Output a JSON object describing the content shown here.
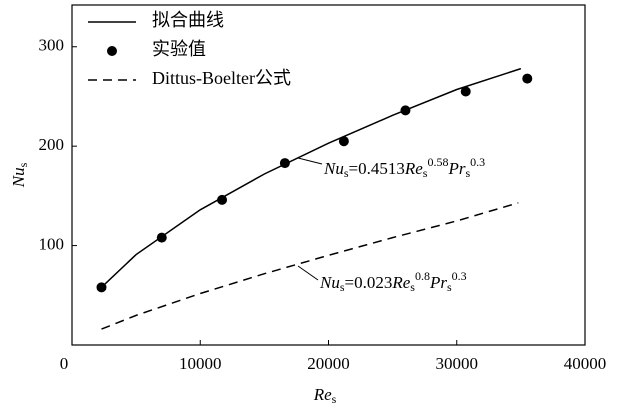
{
  "chart_data": {
    "type": "line",
    "xlabel": [
      {
        "text": "Re",
        "style": "italic"
      },
      {
        "text": "s",
        "style": "sub"
      }
    ],
    "ylabel": [
      {
        "text": "Nu",
        "style": "italic"
      },
      {
        "text": "s",
        "style": "sub"
      }
    ],
    "xlim": [
      0,
      40000
    ],
    "ylim": [
      0,
      342
    ],
    "xticks": [
      0,
      10000,
      20000,
      30000,
      40000
    ],
    "yticks": [
      100,
      200,
      300
    ],
    "series": [
      {
        "name": "拟合曲线",
        "color": "#000000",
        "kind": "line",
        "dash": false,
        "x": [
          2300,
          5000,
          10000,
          15000,
          20000,
          25000,
          30000,
          35000
        ],
        "values": [
          58,
          91,
          136,
          172,
          203,
          231,
          257,
          278
        ]
      },
      {
        "name": "实验值",
        "color": "#000000",
        "kind": "scatter",
        "x": [
          2300,
          7000,
          11700,
          16600,
          21200,
          26000,
          30700,
          35500
        ],
        "values": [
          58,
          108,
          146,
          183,
          205,
          236,
          255,
          268
        ]
      },
      {
        "name": "Dittus-Boelter公式",
        "color": "#000000",
        "kind": "line",
        "dash": true,
        "x": [
          2300,
          5000,
          10000,
          15000,
          20000,
          25000,
          30000,
          34800
        ],
        "values": [
          16,
          29.8,
          51.8,
          71.7,
          90.2,
          108,
          124.8,
          143
        ]
      }
    ],
    "annotations": [
      {
        "parts": [
          {
            "text": "Nu",
            "style": "italic"
          },
          {
            "text": "s",
            "style": "sub"
          },
          {
            "text": "=0.4513",
            "style": "normal"
          },
          {
            "text": "Re",
            "style": "italic"
          },
          {
            "text": "s",
            "style": "sub"
          },
          {
            "text": "0.58",
            "style": "sup"
          },
          {
            "text": "Pr",
            "style": "italic"
          },
          {
            "text": "s",
            "style": "sub"
          },
          {
            "text": "0.3",
            "style": "sup"
          }
        ]
      },
      {
        "parts": [
          {
            "text": "Nu",
            "style": "italic"
          },
          {
            "text": "s",
            "style": "sub"
          },
          {
            "text": "=0.023",
            "style": "normal"
          },
          {
            "text": "Re",
            "style": "italic"
          },
          {
            "text": "s",
            "style": "sub"
          },
          {
            "text": "0.8",
            "style": "sup"
          },
          {
            "text": "Pr",
            "style": "italic"
          },
          {
            "text": "s",
            "style": "sub"
          },
          {
            "text": "0.3",
            "style": "sup"
          }
        ]
      }
    ]
  }
}
